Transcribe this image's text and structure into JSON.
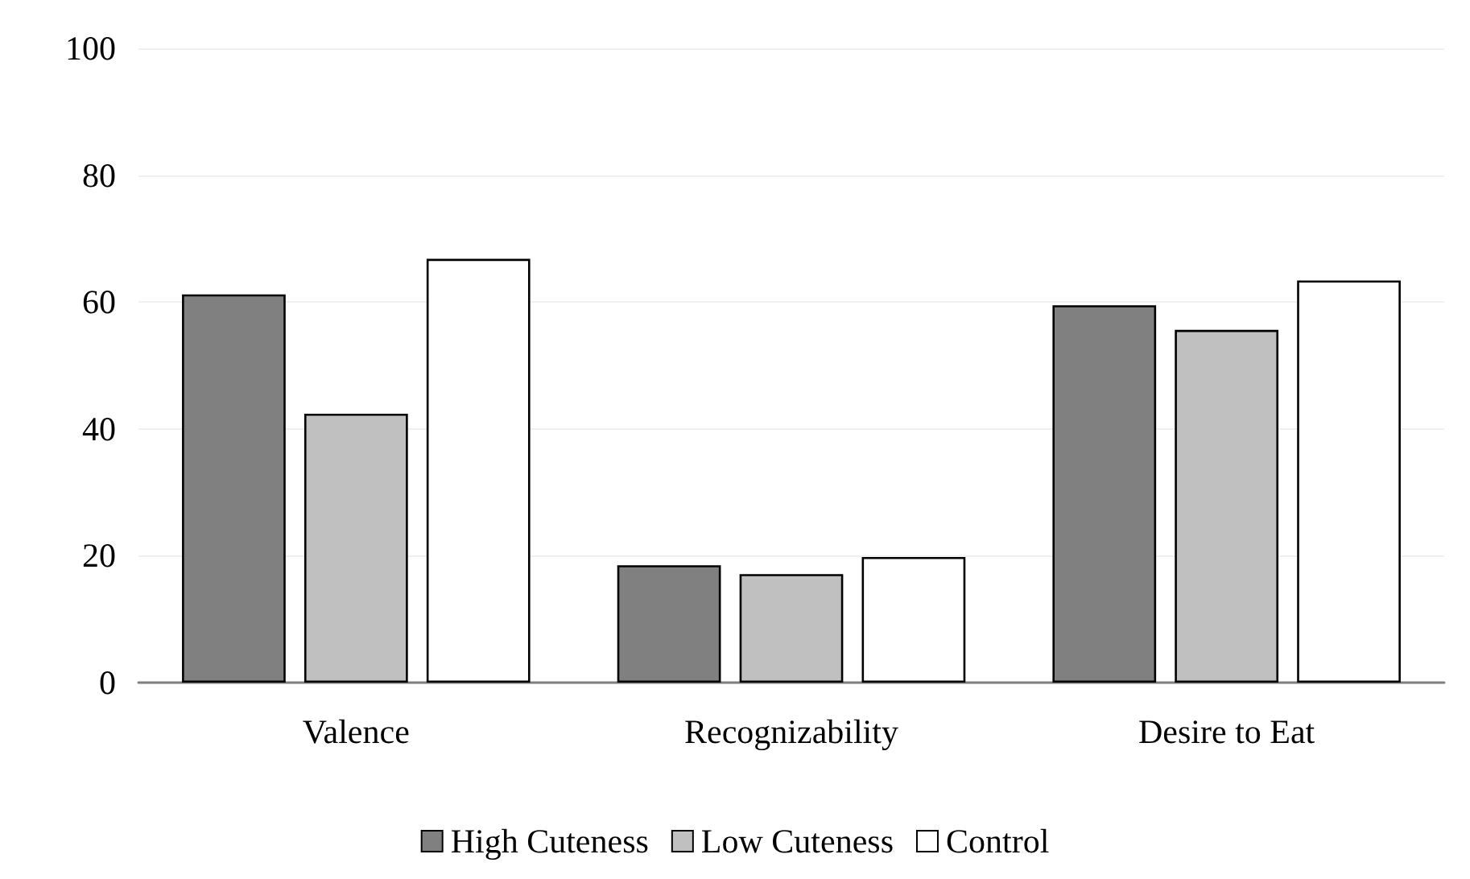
{
  "chart_data": {
    "type": "bar",
    "categories": [
      "Valence",
      "Recognizability",
      "Desire to Eat"
    ],
    "series": [
      {
        "name": "High Cuteness",
        "color": "#808080",
        "values": [
          61.2,
          18.5,
          59.5
        ]
      },
      {
        "name": "Low Cuteness",
        "color": "#c0c0c0",
        "values": [
          42.4,
          17.1,
          55.6
        ]
      },
      {
        "name": "Control",
        "color": "#ffffff",
        "values": [
          66.8,
          19.8,
          63.4
        ]
      }
    ],
    "ylim": [
      0,
      100
    ],
    "yticks": [
      0,
      20,
      40,
      60,
      80,
      100
    ],
    "grid": "y",
    "legend": "bottom"
  }
}
